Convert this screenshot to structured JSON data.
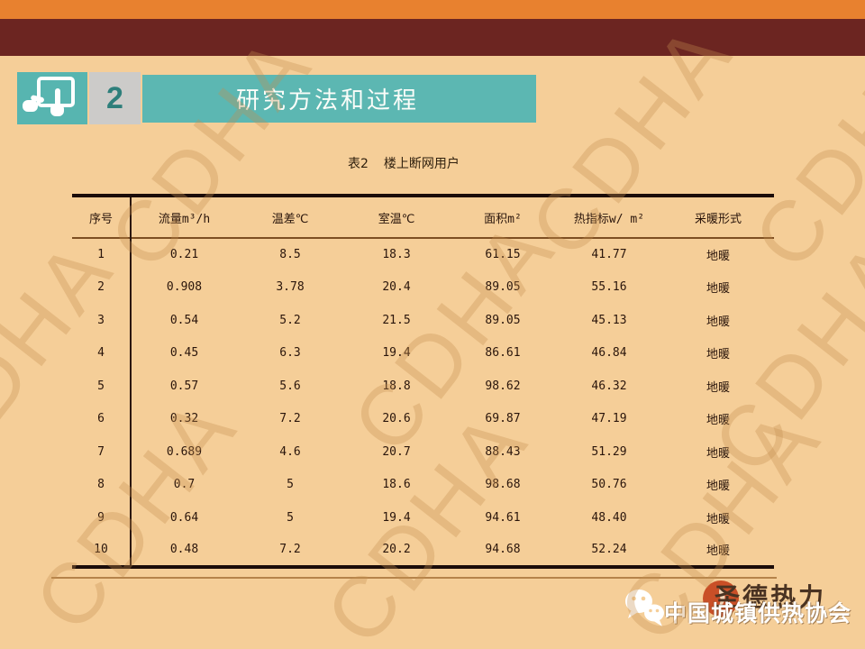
{
  "slide": {
    "header": {
      "number": "2",
      "title": "研究方法和过程"
    },
    "caption": {
      "tag": "表2",
      "title": "楼上断网用户"
    },
    "table": {
      "columns": [
        "序号",
        "流量m³/h",
        "温差℃",
        "室温℃",
        "面积m²",
        "热指标w/ m²",
        "采暖形式"
      ],
      "rows": [
        [
          "1",
          "0.21",
          "8.5",
          "18.3",
          "61.15",
          "41.77",
          "地暖"
        ],
        [
          "2",
          "0.908",
          "3.78",
          "20.4",
          "89.05",
          "55.16",
          "地暖"
        ],
        [
          "3",
          "0.54",
          "5.2",
          "21.5",
          "89.05",
          "45.13",
          "地暖"
        ],
        [
          "4",
          "0.45",
          "6.3",
          "19.4",
          "86.61",
          "46.84",
          "地暖"
        ],
        [
          "5",
          "0.57",
          "5.6",
          "18.8",
          "98.62",
          "46.32",
          "地暖"
        ],
        [
          "6",
          "0.32",
          "7.2",
          "20.6",
          "69.87",
          "47.19",
          "地暖"
        ],
        [
          "7",
          "0.689",
          "4.6",
          "20.7",
          "88.43",
          "51.29",
          "地暖"
        ],
        [
          "8",
          "0.7",
          "5",
          "18.6",
          "98.68",
          "50.76",
          "地暖"
        ],
        [
          "9",
          "0.64",
          "5",
          "19.4",
          "94.61",
          "48.40",
          "地暖"
        ],
        [
          "10",
          "0.48",
          "7.2",
          "20.2",
          "94.68",
          "52.24",
          "地暖"
        ]
      ]
    },
    "footer": {
      "org_name": "中国城镇供热协会",
      "overlay_logo_text": "圣德热力"
    },
    "watermark_text": "CDHA",
    "colors": {
      "background": "#F5CE98",
      "top_bar_orange": "#E8812F",
      "top_bar_maroon": "#6C2521",
      "accent_teal": "#5CB7B2",
      "number_box_gray": "#CCCBC9",
      "table_text": "#2A150B",
      "watermark": "#C58F4F"
    }
  }
}
